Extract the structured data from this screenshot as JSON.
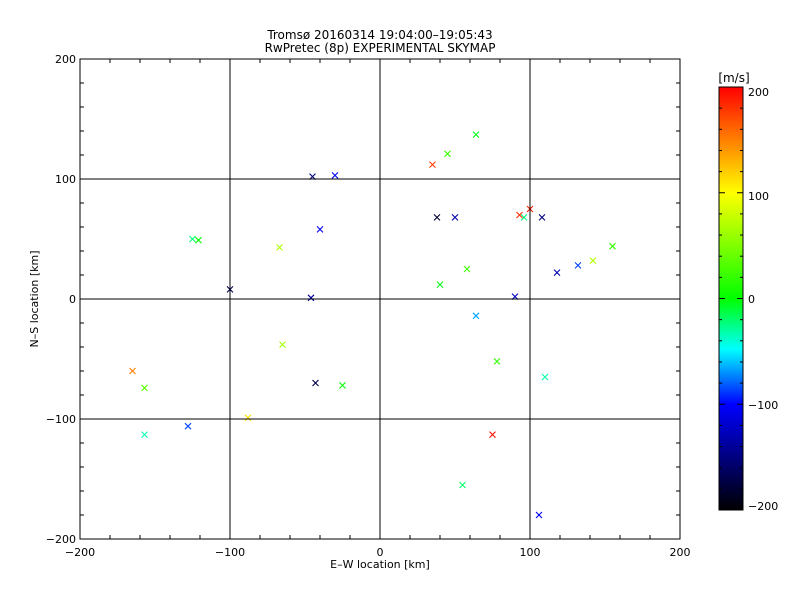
{
  "chart_data": {
    "type": "scatter",
    "title": "Tromsø 20160314 19:04:00–19:05:43",
    "subtitle": "RwPretec (8p) EXPERIMENTAL SKYMAP",
    "xlabel": "E–W location [km]",
    "ylabel": "N–S location [km]",
    "xlim": [
      -200,
      200
    ],
    "ylim": [
      -200,
      200
    ],
    "x_ticks": [
      -200,
      -100,
      0,
      100,
      200
    ],
    "y_ticks": [
      -200,
      -100,
      0,
      100,
      200
    ],
    "x_tick_labels": [
      "−200",
      "−100",
      "0",
      "100",
      "200"
    ],
    "y_tick_labels": [
      "−200",
      "−100",
      "0",
      "100",
      "200"
    ],
    "grid": "lines at ±100 and 0 km",
    "colorbar": {
      "label": "[m/s]",
      "range": [
        -200,
        200
      ],
      "ticks": [
        200,
        100,
        0,
        -100,
        -200
      ],
      "tick_labels": [
        "200",
        "100",
        "0",
        "−100",
        "−200"
      ],
      "colors": [
        "#ff0000",
        "#ffff00",
        "#00ff00",
        "#00ffff",
        "#0000ff",
        "#000000"
      ]
    },
    "series": [
      {
        "marker": "x",
        "points": [
          [
            64,
            137
          ],
          [
            45,
            121
          ],
          [
            -45,
            102
          ],
          [
            -30,
            103
          ],
          [
            -125,
            50
          ],
          [
            -121,
            49
          ],
          [
            -100,
            8
          ],
          [
            -165,
            -60
          ],
          [
            -157,
            -74
          ],
          [
            -157,
            -113
          ],
          [
            -128,
            -106
          ],
          [
            -88,
            -99
          ],
          [
            -65,
            -38
          ],
          [
            -43,
            -70
          ],
          [
            -25,
            -72
          ],
          [
            -40,
            58
          ],
          [
            -67,
            43
          ],
          [
            -46,
            1
          ],
          [
            58,
            25
          ],
          [
            40,
            12
          ],
          [
            50,
            68
          ],
          [
            38,
            68
          ],
          [
            35,
            112
          ],
          [
            100,
            75
          ],
          [
            108,
            68
          ],
          [
            96,
            68
          ],
          [
            93,
            70
          ],
          [
            90,
            2
          ],
          [
            110,
            -65
          ],
          [
            155,
            44
          ],
          [
            142,
            32
          ],
          [
            132,
            28
          ],
          [
            118,
            22
          ],
          [
            75,
            -113
          ],
          [
            55,
            -155
          ],
          [
            106,
            -180
          ],
          [
            78,
            -52
          ],
          [
            64,
            -14
          ]
        ]
      }
    ]
  }
}
